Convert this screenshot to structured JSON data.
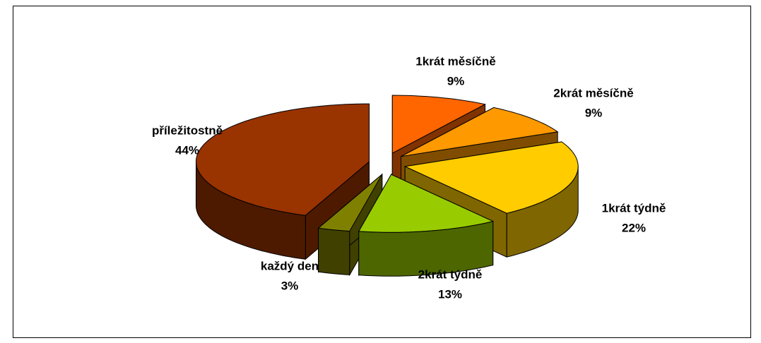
{
  "chart_data": {
    "type": "pie",
    "categories": [
      "1krát měsíčně",
      "2krát měsíčně",
      "1krát týdně",
      "2krát týdně",
      "každý den",
      "příležitostně"
    ],
    "values": [
      9,
      9,
      22,
      13,
      3,
      44
    ],
    "value_labels": [
      "9%",
      "9%",
      "22%",
      "13%",
      "3%",
      "44%"
    ],
    "colors": [
      "#ff6600",
      "#ff9900",
      "#ffcc00",
      "#99cc00",
      "#808000",
      "#993300"
    ]
  }
}
